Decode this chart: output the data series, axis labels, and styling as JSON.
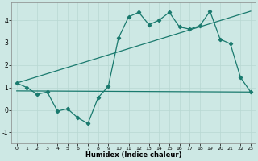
{
  "xlabel": "Humidex (Indice chaleur)",
  "bg_color": "#cde8e4",
  "line_color": "#1a7a6e",
  "grid_color": "#b8d8d2",
  "xlim": [
    -0.5,
    23.5
  ],
  "ylim": [
    -1.5,
    4.8
  ],
  "yticks": [
    -1,
    0,
    1,
    2,
    3,
    4
  ],
  "xticks": [
    0,
    1,
    2,
    3,
    4,
    5,
    6,
    7,
    8,
    9,
    10,
    11,
    12,
    13,
    14,
    15,
    16,
    17,
    18,
    19,
    20,
    21,
    22,
    23
  ],
  "line1_x": [
    0,
    1,
    2,
    3,
    4,
    5,
    6,
    7,
    8,
    9,
    10,
    11,
    12,
    13,
    14,
    15,
    16,
    17,
    18,
    19,
    20,
    21,
    22,
    23
  ],
  "line1_y": [
    1.2,
    1.0,
    0.7,
    0.8,
    -0.05,
    0.05,
    -0.35,
    -0.6,
    0.55,
    1.05,
    3.2,
    4.15,
    4.35,
    3.8,
    4.0,
    4.35,
    3.7,
    3.6,
    3.75,
    4.4,
    3.15,
    2.95,
    1.45,
    0.8
  ],
  "line2_x": [
    0,
    23
  ],
  "line2_y": [
    0.85,
    0.8
  ],
  "line3_x": [
    0,
    23
  ],
  "line3_y": [
    1.2,
    4.4
  ]
}
